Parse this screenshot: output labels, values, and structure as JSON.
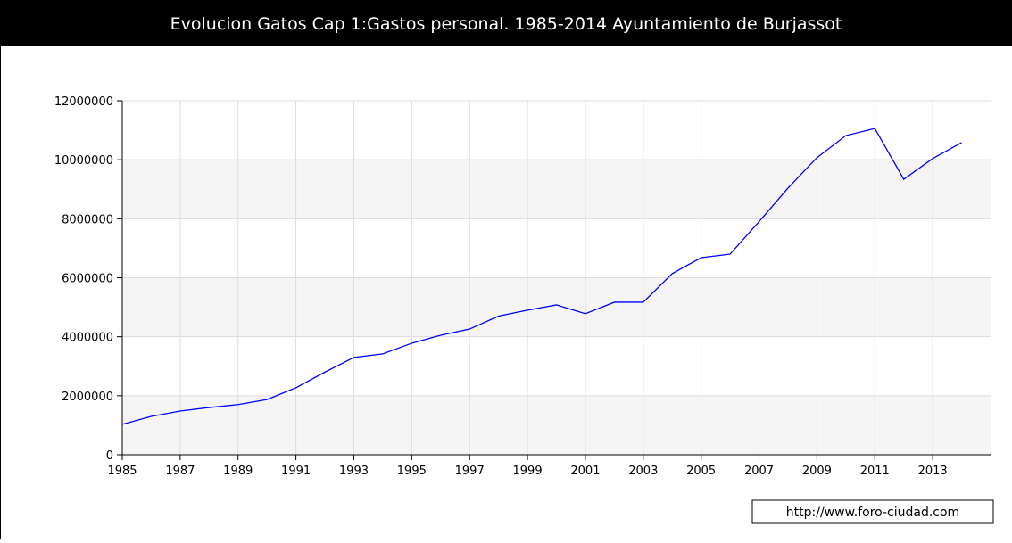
{
  "chart_data": {
    "type": "line",
    "title": "Evolucion Gatos Cap 1:Gastos personal. 1985-2014 Ayuntamiento de Burjassot",
    "source": "http://www.foro-ciudad.com",
    "x": [
      1985,
      1986,
      1987,
      1988,
      1989,
      1990,
      1991,
      1992,
      1993,
      1994,
      1995,
      1996,
      1997,
      1998,
      1999,
      2000,
      2001,
      2002,
      2003,
      2004,
      2005,
      2006,
      2007,
      2008,
      2009,
      2010,
      2011,
      2012,
      2013,
      2014
    ],
    "series": [
      {
        "name": "Gastos personal",
        "color": "#0000ff",
        "values": [
          1030000,
          1300000,
          1480000,
          1600000,
          1700000,
          1870000,
          2270000,
          2800000,
          3300000,
          3420000,
          3780000,
          4050000,
          4260000,
          4700000,
          4900000,
          5080000,
          4780000,
          5170000,
          5170000,
          6140000,
          6680000,
          6800000,
          7900000,
          9040000,
          10070000,
          10820000,
          11060000,
          9340000,
          10040000,
          10580000
        ]
      }
    ],
    "xlim": [
      1985,
      2015
    ],
    "xticks": [
      1985,
      1987,
      1989,
      1991,
      1993,
      1995,
      1997,
      1999,
      2001,
      2003,
      2005,
      2007,
      2009,
      2011,
      2013
    ],
    "ylim": [
      0,
      12000000
    ],
    "yticks": [
      0,
      2000000,
      4000000,
      6000000,
      8000000,
      10000000,
      12000000
    ],
    "grid": true
  }
}
